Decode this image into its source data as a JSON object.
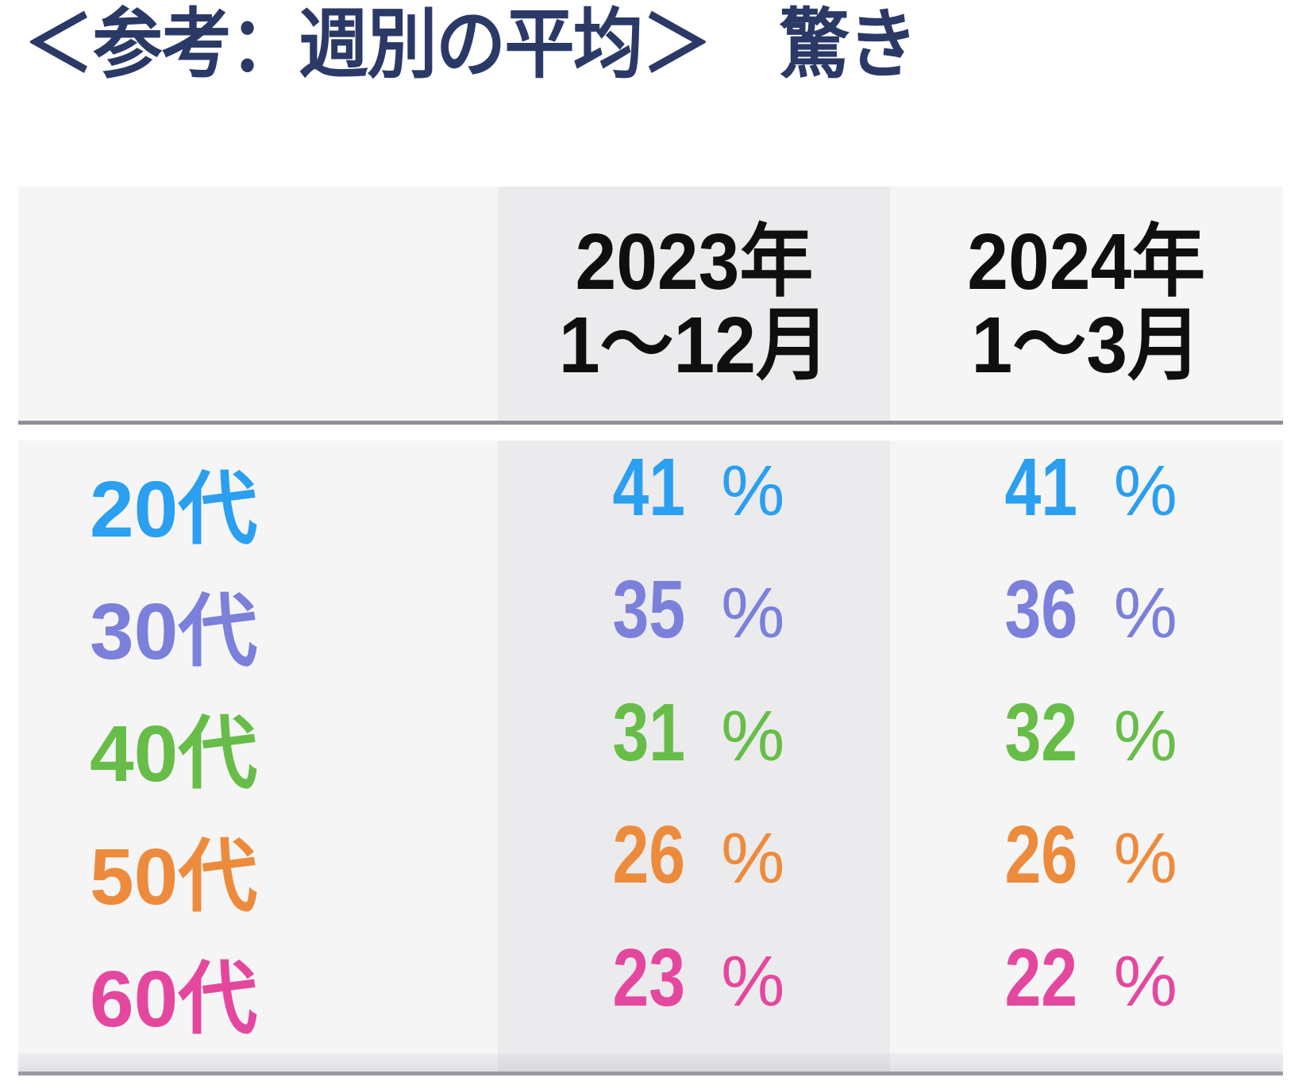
{
  "title": "＜参考：週別の平均＞　驚き",
  "table": {
    "columns": [
      {
        "line1": "2023年",
        "line2": "1～12月"
      },
      {
        "line1": "2024年",
        "line2": "1～3月"
      }
    ],
    "unit": "%",
    "rows": [
      {
        "label": "20代",
        "color": "#2b9ff0",
        "values": [
          "41",
          "41"
        ]
      },
      {
        "label": "30代",
        "color": "#7b80db",
        "values": [
          "35",
          "36"
        ]
      },
      {
        "label": "40代",
        "color": "#67bd48",
        "values": [
          "31",
          "32"
        ]
      },
      {
        "label": "50代",
        "color": "#ed8b3d",
        "values": [
          "26",
          "26"
        ]
      },
      {
        "label": "60代",
        "color": "#e4489e",
        "values": [
          "23",
          "22"
        ]
      }
    ]
  },
  "colors": {
    "title_text": "#2b3966",
    "header_text": "#0f0f0f",
    "column_2023_bg": "#ebebed",
    "column_default_bg": "#f5f5f6",
    "header_separator_line": "#908f98",
    "bottom_border_line": "#9b9aa2",
    "footer_strip": "#e5e5ea",
    "footer_strip_2023": "#dcdce1",
    "page_bg": "#ffffff"
  },
  "chart_data": {
    "type": "table",
    "title": "＜参考：週別の平均＞　驚き",
    "subtitle_note": "週別の平均（参考）・驚き",
    "categories": [
      "20代",
      "30代",
      "40代",
      "50代",
      "60代"
    ],
    "series": [
      {
        "name": "2023年1～12月",
        "values": [
          41,
          35,
          31,
          26,
          23
        ]
      },
      {
        "name": "2024年1～3月",
        "values": [
          41,
          36,
          32,
          26,
          22
        ]
      }
    ],
    "unit": "%",
    "row_colors": [
      "#2b9ff0",
      "#7b80db",
      "#67bd48",
      "#ed8b3d",
      "#e4489e"
    ],
    "layout": "rows are age groups, columns are time periods, 2023 column has shaded background"
  }
}
